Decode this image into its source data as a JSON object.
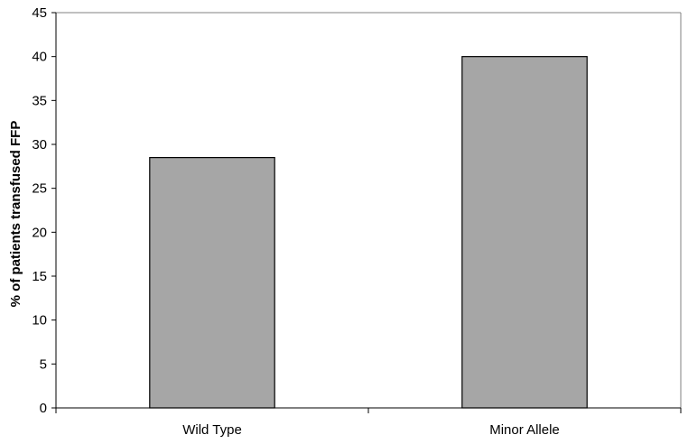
{
  "chart_data": {
    "type": "bar",
    "title": "",
    "xlabel": "",
    "ylabel": "% of patients transfused FFP",
    "categories": [
      "Wild Type",
      "Minor Allele"
    ],
    "values": [
      28.5,
      40
    ],
    "ylim": [
      0,
      45
    ],
    "yticks": [
      0,
      5,
      10,
      15,
      20,
      25,
      30,
      35,
      40,
      45
    ],
    "grid": false,
    "legend": "none",
    "bar_color": "#a6a6a6",
    "bar_outline_color": "#000000",
    "axis_color": "#000000",
    "frame_color": "#808080"
  }
}
